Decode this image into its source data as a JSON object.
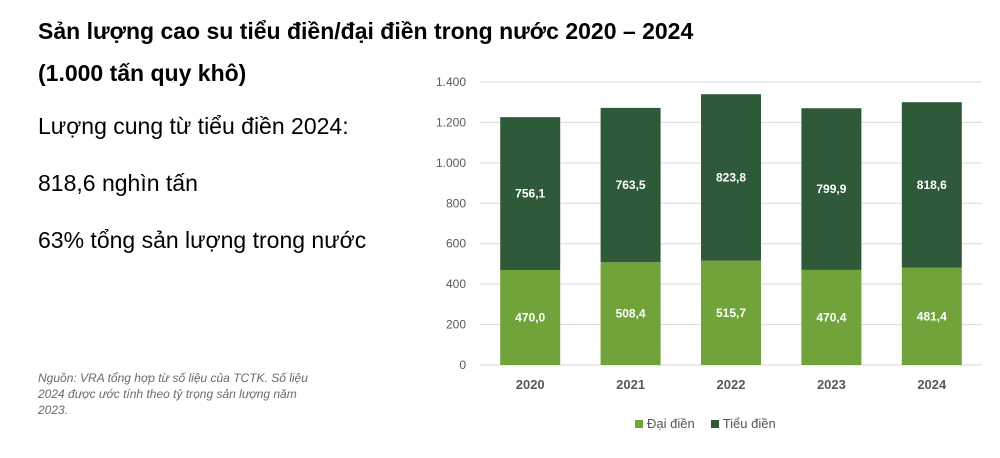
{
  "header": {
    "title_line1": "Sản lượng cao su tiểu điền/đại điền trong nước 2020 – 2024",
    "title_line2": "(1.000 tấn quy khô)"
  },
  "stats": {
    "line1": "Lượng cung từ tiểu điền 2024:",
    "line2": "818,6 nghìn tấn",
    "line3": "63% tổng sản lượng trong nước"
  },
  "source_note": "Nguồn: VRA tổng hợp từ số liệu của TCTK. Số liệu 2024 được ước tính theo tỷ trọng sản lượng năm 2023.",
  "colors": {
    "dai_dien": "#70a33a",
    "tieu_dien": "#2e5a3a",
    "grid": "#d9d9d9",
    "axis_text": "#595959"
  },
  "chart_data": {
    "type": "bar",
    "stacked": true,
    "title": "Sản lượng cao su tiểu điền/đại điền trong nước 2020 – 2024 (1.000 tấn quy khô)",
    "categories": [
      "2020",
      "2021",
      "2022",
      "2023",
      "2024"
    ],
    "series": [
      {
        "name": "Đại điền",
        "values": [
          470.0,
          508.4,
          515.7,
          470.4,
          481.4
        ],
        "labels": [
          "470,0",
          "508,4",
          "515,7",
          "470,4",
          "481,4"
        ]
      },
      {
        "name": "Tiểu điền",
        "values": [
          756.1,
          763.5,
          823.8,
          799.9,
          818.6
        ],
        "labels": [
          "756,1",
          "763,5",
          "823,8",
          "799,9",
          "818,6"
        ]
      }
    ],
    "ylim": [
      0,
      1400
    ],
    "yticks": [
      0,
      200,
      400,
      600,
      800,
      1000,
      1200,
      1400
    ],
    "ytick_labels": [
      "0",
      "200",
      "400",
      "600",
      "800",
      "1.000",
      "1.200",
      "1.400"
    ],
    "grid": true,
    "legend": "bottom",
    "xlabel": "",
    "ylabel": ""
  }
}
